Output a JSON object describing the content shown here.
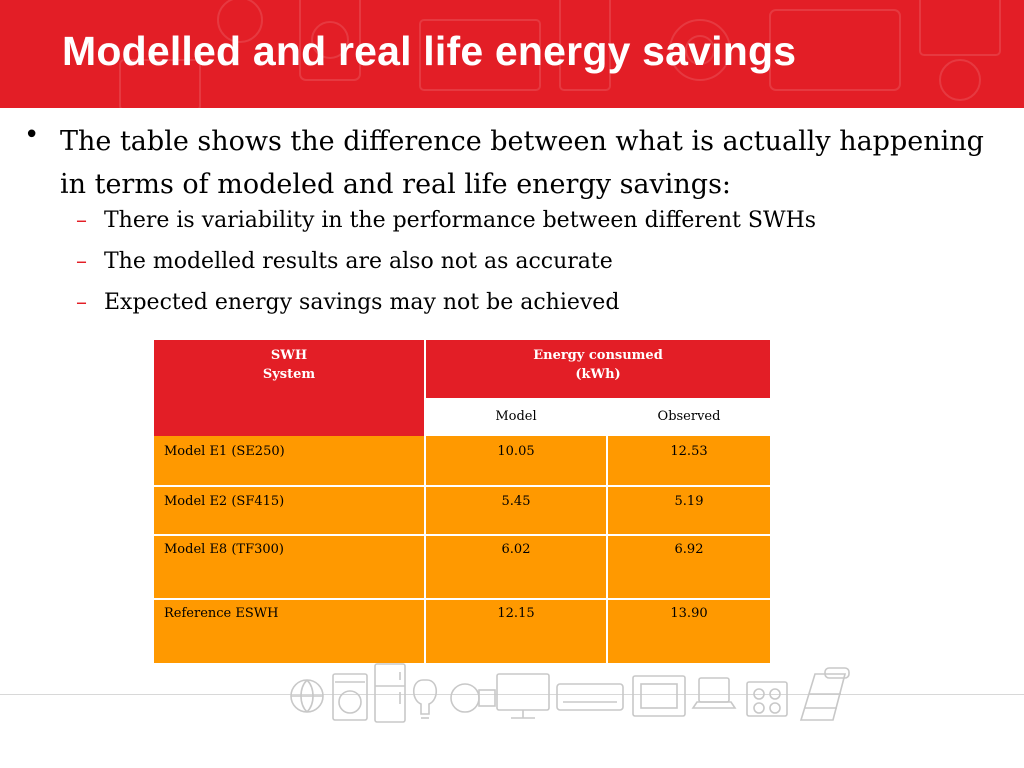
{
  "slide": {
    "title": "Modelled and real life energy savings",
    "bullet_main": "The table shows the difference between what is actually happening in terms of modeled and real life energy savings:",
    "sub_bullets": [
      "There is variability in the performance between different SWHs",
      "The modelled results are also not as accurate",
      "Expected energy savings may not be achieved"
    ],
    "bullet_symbol": "•",
    "dash_symbol": "–"
  },
  "table": {
    "header_system_line1": "SWH",
    "header_system_line2": "System",
    "header_energy_line1": "Energy consumed",
    "header_energy_line2": "(kWh)",
    "col_model": "Model",
    "col_observed": "Observed",
    "rows": [
      {
        "system": "Model E1 (SE250)",
        "model": "10.05",
        "observed": "12.53"
      },
      {
        "system": "Model E2 (SF415)",
        "model": "5.45",
        "observed": "5.19"
      },
      {
        "system": "Model E8 (TF300)",
        "model": "6.02",
        "observed": "6.92"
      },
      {
        "system": "Reference ESWH",
        "model": "12.15",
        "observed": "13.90"
      }
    ]
  },
  "colors": {
    "brand_red": "#e31e26",
    "table_orange": "#ff9900",
    "text": "#000000"
  }
}
